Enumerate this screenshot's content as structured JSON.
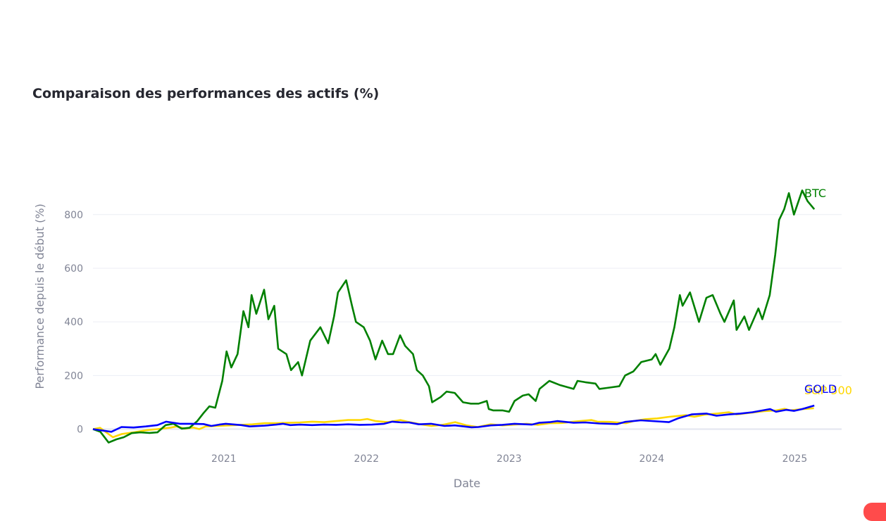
{
  "chart_data": {
    "type": "line",
    "title": "Comparaison des performances des actifs (%)",
    "xlabel": "Date",
    "ylabel": "Performance depuis le début (%)",
    "x_ticks": [
      "2021",
      "2022",
      "2023",
      "2024",
      "2025"
    ],
    "y_ticks": [
      0,
      200,
      400,
      600,
      800
    ],
    "xlim": [
      "2020-02-01",
      "2025-05-01"
    ],
    "ylim": [
      -80,
      1020
    ],
    "grid": true,
    "legend": "none",
    "series": [
      {
        "name": "BTC",
        "color": "#008000",
        "points": [
          [
            "2020-02-01",
            0
          ],
          [
            "2020-02-20",
            -10
          ],
          [
            "2020-03-12",
            -50
          ],
          [
            "2020-04-01",
            -38
          ],
          [
            "2020-04-20",
            -30
          ],
          [
            "2020-05-10",
            -15
          ],
          [
            "2020-06-01",
            -12
          ],
          [
            "2020-06-25",
            -14
          ],
          [
            "2020-07-15",
            -12
          ],
          [
            "2020-08-05",
            15
          ],
          [
            "2020-08-25",
            20
          ],
          [
            "2020-09-15",
            2
          ],
          [
            "2020-10-05",
            5
          ],
          [
            "2020-10-25",
            30
          ],
          [
            "2020-11-10",
            60
          ],
          [
            "2020-11-25",
            85
          ],
          [
            "2020-12-10",
            80
          ],
          [
            "2020-12-28",
            180
          ],
          [
            "2021-01-08",
            290
          ],
          [
            "2021-01-20",
            230
          ],
          [
            "2021-02-05",
            280
          ],
          [
            "2021-02-20",
            440
          ],
          [
            "2021-03-05",
            380
          ],
          [
            "2021-03-13",
            500
          ],
          [
            "2021-03-25",
            430
          ],
          [
            "2021-04-14",
            520
          ],
          [
            "2021-04-25",
            410
          ],
          [
            "2021-05-10",
            460
          ],
          [
            "2021-05-20",
            300
          ],
          [
            "2021-06-10",
            280
          ],
          [
            "2021-06-22",
            220
          ],
          [
            "2021-07-10",
            250
          ],
          [
            "2021-07-20",
            200
          ],
          [
            "2021-08-10",
            330
          ],
          [
            "2021-09-05",
            380
          ],
          [
            "2021-09-25",
            320
          ],
          [
            "2021-10-10",
            420
          ],
          [
            "2021-10-20",
            510
          ],
          [
            "2021-11-10",
            555
          ],
          [
            "2021-11-25",
            460
          ],
          [
            "2021-12-05",
            400
          ],
          [
            "2021-12-25",
            380
          ],
          [
            "2022-01-10",
            330
          ],
          [
            "2022-01-24",
            260
          ],
          [
            "2022-02-10",
            330
          ],
          [
            "2022-02-25",
            280
          ],
          [
            "2022-03-10",
            280
          ],
          [
            "2022-03-28",
            350
          ],
          [
            "2022-04-10",
            310
          ],
          [
            "2022-04-30",
            280
          ],
          [
            "2022-05-10",
            220
          ],
          [
            "2022-05-25",
            200
          ],
          [
            "2022-06-10",
            160
          ],
          [
            "2022-06-18",
            100
          ],
          [
            "2022-07-10",
            120
          ],
          [
            "2022-07-25",
            140
          ],
          [
            "2022-08-15",
            135
          ],
          [
            "2022-09-05",
            100
          ],
          [
            "2022-09-25",
            95
          ],
          [
            "2022-10-15",
            95
          ],
          [
            "2022-11-05",
            105
          ],
          [
            "2022-11-10",
            75
          ],
          [
            "2022-11-21",
            70
          ],
          [
            "2022-12-15",
            70
          ],
          [
            "2023-01-01",
            65
          ],
          [
            "2023-01-15",
            105
          ],
          [
            "2023-02-05",
            125
          ],
          [
            "2023-02-20",
            130
          ],
          [
            "2023-03-10",
            105
          ],
          [
            "2023-03-20",
            150
          ],
          [
            "2023-04-14",
            180
          ],
          [
            "2023-05-10",
            165
          ],
          [
            "2023-06-15",
            150
          ],
          [
            "2023-06-25",
            180
          ],
          [
            "2023-07-15",
            175
          ],
          [
            "2023-08-10",
            170
          ],
          [
            "2023-08-20",
            150
          ],
          [
            "2023-09-15",
            155
          ],
          [
            "2023-10-10",
            160
          ],
          [
            "2023-10-25",
            200
          ],
          [
            "2023-11-15",
            215
          ],
          [
            "2023-12-05",
            250
          ],
          [
            "2024-01-01",
            260
          ],
          [
            "2024-01-11",
            280
          ],
          [
            "2024-01-23",
            240
          ],
          [
            "2024-02-15",
            300
          ],
          [
            "2024-02-28",
            380
          ],
          [
            "2024-03-13",
            500
          ],
          [
            "2024-03-20",
            460
          ],
          [
            "2024-04-08",
            510
          ],
          [
            "2024-05-01",
            400
          ],
          [
            "2024-05-20",
            490
          ],
          [
            "2024-06-05",
            500
          ],
          [
            "2024-06-25",
            430
          ],
          [
            "2024-07-05",
            400
          ],
          [
            "2024-07-29",
            480
          ],
          [
            "2024-08-05",
            370
          ],
          [
            "2024-08-25",
            420
          ],
          [
            "2024-09-06",
            370
          ],
          [
            "2024-09-30",
            450
          ],
          [
            "2024-10-10",
            410
          ],
          [
            "2024-10-29",
            500
          ],
          [
            "2024-11-12",
            650
          ],
          [
            "2024-11-22",
            780
          ],
          [
            "2024-12-05",
            820
          ],
          [
            "2024-12-17",
            880
          ],
          [
            "2024-12-30",
            800
          ],
          [
            "2025-01-20",
            890
          ],
          [
            "2025-02-03",
            850
          ],
          [
            "2025-02-20",
            820
          ]
        ]
      },
      {
        "name": "GOLD",
        "color": "#0000ff",
        "points": [
          [
            "2020-02-01",
            0
          ],
          [
            "2020-03-19",
            -10
          ],
          [
            "2020-04-14",
            8
          ],
          [
            "2020-05-15",
            6
          ],
          [
            "2020-06-15",
            10
          ],
          [
            "2020-07-15",
            15
          ],
          [
            "2020-08-06",
            28
          ],
          [
            "2020-09-10",
            20
          ],
          [
            "2020-10-10",
            20
          ],
          [
            "2020-11-10",
            19
          ],
          [
            "2020-11-30",
            12
          ],
          [
            "2020-12-20",
            17
          ],
          [
            "2021-01-06",
            20
          ],
          [
            "2021-02-15",
            15
          ],
          [
            "2021-03-08",
            10
          ],
          [
            "2021-04-15",
            13
          ],
          [
            "2021-05-15",
            17
          ],
          [
            "2021-06-01",
            20
          ],
          [
            "2021-06-20",
            15
          ],
          [
            "2021-07-15",
            17
          ],
          [
            "2021-08-15",
            15
          ],
          [
            "2021-09-15",
            17
          ],
          [
            "2021-10-15",
            16
          ],
          [
            "2021-11-15",
            18
          ],
          [
            "2021-12-15",
            16
          ],
          [
            "2022-01-15",
            17
          ],
          [
            "2022-02-15",
            20
          ],
          [
            "2022-03-08",
            28
          ],
          [
            "2022-04-01",
            25
          ],
          [
            "2022-04-20",
            25
          ],
          [
            "2022-05-15",
            18
          ],
          [
            "2022-06-15",
            20
          ],
          [
            "2022-07-20",
            12
          ],
          [
            "2022-08-15",
            14
          ],
          [
            "2022-09-27",
            7
          ],
          [
            "2022-10-15",
            8
          ],
          [
            "2022-11-15",
            14
          ],
          [
            "2022-12-15",
            16
          ],
          [
            "2023-01-15",
            20
          ],
          [
            "2023-02-28",
            17
          ],
          [
            "2023-03-20",
            24
          ],
          [
            "2023-04-15",
            26
          ],
          [
            "2023-05-04",
            30
          ],
          [
            "2023-06-15",
            24
          ],
          [
            "2023-07-15",
            25
          ],
          [
            "2023-08-20",
            21
          ],
          [
            "2023-10-05",
            19
          ],
          [
            "2023-10-25",
            27
          ],
          [
            "2023-12-04",
            33
          ],
          [
            "2024-01-15",
            29
          ],
          [
            "2024-02-14",
            26
          ],
          [
            "2024-03-08",
            40
          ],
          [
            "2024-04-12",
            55
          ],
          [
            "2024-05-20",
            58
          ],
          [
            "2024-06-15",
            50
          ],
          [
            "2024-07-17",
            55
          ],
          [
            "2024-08-15",
            58
          ],
          [
            "2024-09-15",
            63
          ],
          [
            "2024-10-30",
            75
          ],
          [
            "2024-11-14",
            65
          ],
          [
            "2024-12-10",
            72
          ],
          [
            "2024-12-30",
            68
          ],
          [
            "2025-01-20",
            75
          ],
          [
            "2025-02-20",
            88
          ]
        ]
      },
      {
        "name": "S&P 500",
        "color": "#ffd700",
        "points": [
          [
            "2020-02-01",
            0
          ],
          [
            "2020-02-19",
            5
          ],
          [
            "2020-03-23",
            -30
          ],
          [
            "2020-04-15",
            -18
          ],
          [
            "2020-05-15",
            -12
          ],
          [
            "2020-06-15",
            -4
          ],
          [
            "2020-07-15",
            0
          ],
          [
            "2020-08-15",
            5
          ],
          [
            "2020-09-02",
            10
          ],
          [
            "2020-09-23",
            2
          ],
          [
            "2020-10-15",
            6
          ],
          [
            "2020-10-30",
            0
          ],
          [
            "2020-11-15",
            10
          ],
          [
            "2020-12-15",
            12
          ],
          [
            "2021-01-15",
            14
          ],
          [
            "2021-02-15",
            16
          ],
          [
            "2021-03-15",
            18
          ],
          [
            "2021-04-15",
            22
          ],
          [
            "2021-05-15",
            22
          ],
          [
            "2021-06-15",
            24
          ],
          [
            "2021-07-15",
            25
          ],
          [
            "2021-08-15",
            28
          ],
          [
            "2021-09-15",
            26
          ],
          [
            "2021-10-15",
            30
          ],
          [
            "2021-11-15",
            34
          ],
          [
            "2021-12-15",
            34
          ],
          [
            "2022-01-03",
            38
          ],
          [
            "2022-01-25",
            30
          ],
          [
            "2022-02-24",
            26
          ],
          [
            "2022-03-29",
            34
          ],
          [
            "2022-04-15",
            28
          ],
          [
            "2022-05-20",
            18
          ],
          [
            "2022-06-16",
            12
          ],
          [
            "2022-07-15",
            16
          ],
          [
            "2022-08-16",
            26
          ],
          [
            "2022-09-15",
            14
          ],
          [
            "2022-10-12",
            8
          ],
          [
            "2022-11-15",
            18
          ],
          [
            "2022-12-15",
            14
          ],
          [
            "2023-01-15",
            17
          ],
          [
            "2023-02-15",
            20
          ],
          [
            "2023-03-15",
            16
          ],
          [
            "2023-04-15",
            22
          ],
          [
            "2023-05-15",
            23
          ],
          [
            "2023-06-15",
            28
          ],
          [
            "2023-07-31",
            34
          ],
          [
            "2023-08-15",
            28
          ],
          [
            "2023-09-15",
            27
          ],
          [
            "2023-10-27",
            22
          ],
          [
            "2023-11-15",
            30
          ],
          [
            "2023-12-15",
            37
          ],
          [
            "2024-01-15",
            40
          ],
          [
            "2024-02-15",
            46
          ],
          [
            "2024-03-28",
            52
          ],
          [
            "2024-04-19",
            46
          ],
          [
            "2024-05-15",
            54
          ],
          [
            "2024-06-15",
            58
          ],
          [
            "2024-07-16",
            63
          ],
          [
            "2024-08-05",
            55
          ],
          [
            "2024-09-15",
            62
          ],
          [
            "2024-10-15",
            67
          ],
          [
            "2024-11-15",
            70
          ],
          [
            "2024-12-06",
            76
          ],
          [
            "2024-12-20",
            70
          ],
          [
            "2025-01-15",
            74
          ],
          [
            "2025-02-19",
            78
          ]
        ]
      }
    ]
  },
  "end_labels": {
    "btc": "BTC",
    "gold": "GOLD",
    "sp500": "S&P 500"
  }
}
